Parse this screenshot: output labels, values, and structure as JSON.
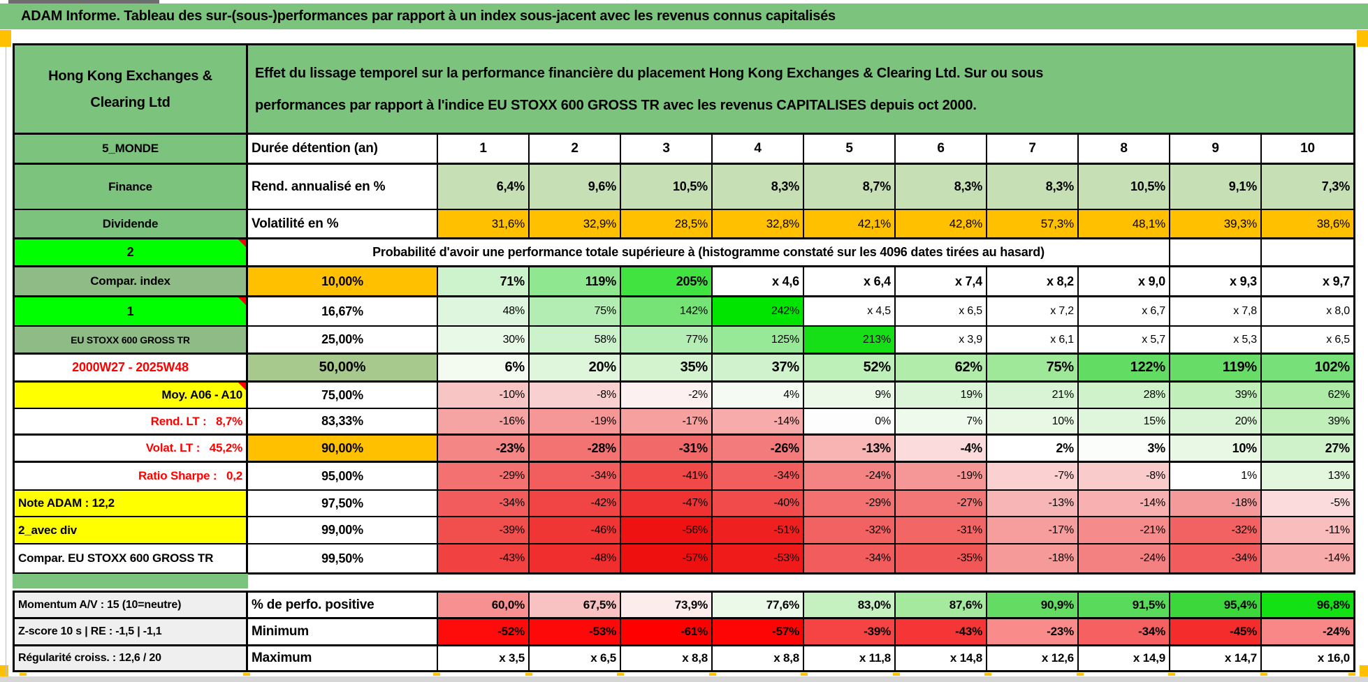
{
  "banner": {
    "title": "ADAM Informe. Tableau des sur-(sous-)performances par rapport à un index sous-jacent avec les revenus connus capitalisés"
  },
  "header": {
    "company": "Hong Kong Exchanges & Clearing Ltd",
    "description": "Effet du lissage temporel sur la performance financière du placement Hong Kong Exchanges & Clearing Ltd. Sur ou sous performances par rapport à l'indice EU STOXX 600 GROSS TR avec les revenus CAPITALISES depuis oct 2000."
  },
  "colors": {
    "banner_green": "#7CC47D",
    "sage_green": "#8FBC86",
    "sage_label": "#A8C98E",
    "lime": "#00FF00",
    "yellow": "#FFFF00",
    "orange": "#FFC000",
    "light_green": "#C6DFB4",
    "gray_label": "#EFEFEF",
    "red_text": "#FF0000",
    "page_break_orange": "#FFC000"
  },
  "main_table": {
    "rows": [
      {
        "id": "duree",
        "a": {
          "text": "5_MONDE",
          "bg": "#7CC47D",
          "align": "center",
          "size": 17
        },
        "b": {
          "text": "Durée détention (an)",
          "align": "left",
          "size": 19
        },
        "values": [
          "1",
          "2",
          "3",
          "4",
          "5",
          "6",
          "7",
          "8",
          "9",
          "10"
        ],
        "value_bg_all": "#FFFFFF",
        "value_bold": true,
        "value_size": 19,
        "value_align": "center",
        "heavy": true
      },
      {
        "id": "rend",
        "a": {
          "text": "Finance",
          "bg": "#7CC47D",
          "align": "center",
          "size": 17
        },
        "b": {
          "text": "Rend. annualisé en %",
          "align": "left",
          "size": 19
        },
        "values": [
          "6,4%",
          "9,6%",
          "10,5%",
          "8,3%",
          "8,7%",
          "8,3%",
          "8,3%",
          "10,5%",
          "9,1%",
          "7,3%"
        ],
        "value_bg_all": "#C6DFB4",
        "value_bold": true,
        "value_size": 18
      },
      {
        "id": "volat",
        "a": {
          "text": "Dividende",
          "bg": "#7CC47D",
          "align": "center",
          "size": 17
        },
        "b": {
          "text": "Volatilité en %",
          "align": "left",
          "size": 19
        },
        "values": [
          "31,6%",
          "32,9%",
          "28,5%",
          "32,8%",
          "42,1%",
          "42,8%",
          "57,3%",
          "48,1%",
          "39,3%",
          "38,6%"
        ],
        "value_bg_all": "#FFC000",
        "value_bold": false,
        "value_size": 17,
        "heavy": true
      },
      {
        "id": "proba",
        "a": {
          "text": "2",
          "bg": "#00FF00",
          "align": "center",
          "size": 18,
          "marker": true
        },
        "b": {
          "text": "Probabilité d'avoir une performance totale supérieure à (histogramme constaté sur les 4096 dates tirées au hasard)",
          "align": "center",
          "size": 18,
          "colspan": 9
        },
        "values": [
          "",
          ""
        ],
        "value_bg_all": "#FFFFFF",
        "value_bold": false,
        "value_size": 16,
        "heavy": true
      },
      {
        "id": "p10",
        "a": {
          "text": "Compar. index",
          "bg": "#8FBC86",
          "align": "center",
          "size": 17
        },
        "b": {
          "text": "10,00%",
          "bg": "#FFC000",
          "align": "center",
          "size": 18
        },
        "values": [
          "71%",
          "119%",
          "205%",
          "x 4,6",
          "x 6,4",
          "x 7,4",
          "x 8,2",
          "x 9,0",
          "x 9,3",
          "x 9,7"
        ],
        "value_bgs": [
          "#CDF3CD",
          "#8FE88F",
          "#41E341",
          "#FFFFFF",
          "#FFFFFF",
          "#FFFFFF",
          "#FFFFFF",
          "#FFFFFF",
          "#FFFFFF",
          "#FFFFFF"
        ],
        "value_bold": true,
        "value_size": 18,
        "heavy": true
      },
      {
        "id": "p16",
        "a": {
          "text": "1",
          "bg": "#00FF00",
          "align": "center",
          "size": 18,
          "marker": true
        },
        "b": {
          "text": "16,67%",
          "align": "center",
          "size": 18
        },
        "values": [
          "48%",
          "75%",
          "142%",
          "242%",
          "x 4,5",
          "x 6,5",
          "x 7,2",
          "x 6,7",
          "x 7,8",
          "x 8,0"
        ],
        "value_bgs": [
          "#DDF6DD",
          "#B3EDB3",
          "#76E376",
          "#00E400",
          "#FFFFFF",
          "#FFFFFF",
          "#FFFFFF",
          "#FFFFFF",
          "#FFFFFF",
          "#FFFFFF"
        ],
        "value_bold": false,
        "value_size": 16
      },
      {
        "id": "p25",
        "a": {
          "text": "EU STOXX 600 GROSS TR",
          "bg": "#8FBC86",
          "align": "center",
          "size": 14
        },
        "b": {
          "text": "25,00%",
          "align": "center",
          "size": 18
        },
        "values": [
          "30%",
          "58%",
          "77%",
          "125%",
          "213%",
          "x 3,9",
          "x 6,1",
          "x 5,7",
          "x 5,3",
          "x 6,5"
        ],
        "value_bgs": [
          "#E8F9E8",
          "#CCF2CC",
          "#B5EEB5",
          "#97E997",
          "#17DF17",
          "#FFFFFF",
          "#FFFFFF",
          "#FFFFFF",
          "#FFFFFF",
          "#FFFFFF"
        ],
        "value_bold": false,
        "value_size": 16,
        "heavy": true
      },
      {
        "id": "p50",
        "a": {
          "text": "2000W27 - 2025W48",
          "bg": "#FFFFFF",
          "fg": "#FF0000",
          "align": "center",
          "size": 18
        },
        "b": {
          "text": "50,00%",
          "bg": "#A8C98E",
          "align": "center",
          "size": 20
        },
        "values": [
          "6%",
          "20%",
          "35%",
          "37%",
          "52%",
          "62%",
          "75%",
          "122%",
          "119%",
          "102%"
        ],
        "value_bgs": [
          "#F3FBF1",
          "#DFF6DC",
          "#D2F3CE",
          "#D0F2CC",
          "#BDEFB8",
          "#B1ECAB",
          "#A0E899",
          "#63DC63",
          "#67DD67",
          "#78E078"
        ],
        "value_bold": true,
        "value_size": 20,
        "heavy": true
      },
      {
        "id": "p75",
        "a": {
          "text": "Moy. A06 - A10",
          "bg": "#FFFF00",
          "align": "right",
          "size": 17,
          "marker": true
        },
        "b": {
          "text": "75,00%",
          "align": "center",
          "size": 18
        },
        "values": [
          "-10%",
          "-8%",
          "-2%",
          "4%",
          "9%",
          "19%",
          "21%",
          "28%",
          "39%",
          "62%"
        ],
        "value_bgs": [
          "#F8C5C5",
          "#F9D0D0",
          "#FDF0F0",
          "#F5FBF3",
          "#ECF9E9",
          "#DCF5D8",
          "#D9F4D5",
          "#CFF2CA",
          "#C0EFB9",
          "#AEEBA6"
        ],
        "value_bold": false,
        "value_size": 16
      },
      {
        "id": "p83",
        "a": {
          "text": "Rend. LT :   8,7%",
          "bg": "#FFFFFF",
          "fg": "#FF0000",
          "align": "right",
          "size": 17
        },
        "b": {
          "text": "83,33%",
          "align": "center",
          "size": 18
        },
        "values": [
          "-16%",
          "-19%",
          "-17%",
          "-14%",
          "0%",
          "7%",
          "10%",
          "15%",
          "20%",
          "39%"
        ],
        "value_bgs": [
          "#F6A3A3",
          "#F59797",
          "#F6A0A0",
          "#F7ABAB",
          "#FDFDFD",
          "#EEFAEB",
          "#E8F8E4",
          "#E0F6DC",
          "#D9F4D4",
          "#C0EFB9"
        ],
        "value_bold": false,
        "value_size": 16,
        "heavy": true
      },
      {
        "id": "p90",
        "a": {
          "text": "Volat. LT :   45,2%",
          "bg": "#FFFFFF",
          "fg": "#FF0000",
          "align": "right",
          "size": 17
        },
        "b": {
          "text": "90,00%",
          "bg": "#FFC000",
          "align": "center",
          "size": 18
        },
        "values": [
          "-23%",
          "-28%",
          "-31%",
          "-26%",
          "-13%",
          "-4%",
          "2%",
          "3%",
          "10%",
          "27%"
        ],
        "value_bgs": [
          "#F48686",
          "#F37373",
          "#F26969",
          "#F37B7B",
          "#F8B3B3",
          "#FBDBDB",
          "#FEFFFE",
          "#FAFDF9",
          "#E8F8E4",
          "#D0F2CB"
        ],
        "value_bold": true,
        "value_size": 18,
        "heavy": true
      },
      {
        "id": "p95",
        "a": {
          "text": "Ratio Sharpe :   0,2",
          "bg": "#FFFFFF",
          "fg": "#FF0000",
          "align": "right",
          "size": 17
        },
        "b": {
          "text": "95,00%",
          "align": "center",
          "size": 18
        },
        "values": [
          "-29%",
          "-34%",
          "-41%",
          "-34%",
          "-24%",
          "-19%",
          "-7%",
          "-8%",
          "1%",
          "13%"
        ],
        "value_bgs": [
          "#F37171",
          "#F25E5E",
          "#F14848",
          "#F25E5E",
          "#F48383",
          "#F59797",
          "#FAD0D0",
          "#FACBCB",
          "#FEFFFE",
          "#E3F7DF"
        ],
        "value_bold": false,
        "value_size": 16
      },
      {
        "id": "p975",
        "a": {
          "text": "Note ADAM : 12,2",
          "bg": "#FFFF00",
          "align": "left",
          "size": 17
        },
        "b": {
          "text": "97,50%",
          "align": "center",
          "size": 18
        },
        "values": [
          "-34%",
          "-42%",
          "-47%",
          "-40%",
          "-29%",
          "-27%",
          "-13%",
          "-14%",
          "-18%",
          "-5%"
        ],
        "value_bgs": [
          "#F25C5C",
          "#F14444",
          "#F03232",
          "#F14B4B",
          "#F37171",
          "#F37777",
          "#F8B5B5",
          "#F8B0B0",
          "#F59A9A",
          "#FBDBDB"
        ],
        "value_bold": false,
        "value_size": 16
      },
      {
        "id": "p99",
        "a": {
          "text": "2_avec div",
          "bg": "#FFFF00",
          "align": "left",
          "size": 17
        },
        "b": {
          "text": "99,00%",
          "align": "center",
          "size": 18
        },
        "values": [
          "-39%",
          "-46%",
          "-56%",
          "-51%",
          "-32%",
          "-31%",
          "-17%",
          "-21%",
          "-32%",
          "-11%"
        ],
        "value_bgs": [
          "#F14E4E",
          "#F03535",
          "#EE1212",
          "#EF2020",
          "#F26262",
          "#F26666",
          "#F69D9D",
          "#F58B8B",
          "#F26262",
          "#F9BDBD"
        ],
        "value_bold": false,
        "value_size": 16
      },
      {
        "id": "p995",
        "a": {
          "text": "Compar. EU STOXX 600 GROSS TR",
          "bg": "#FFFFFF",
          "align": "left",
          "size": 17
        },
        "b": {
          "text": "99,50%",
          "align": "center",
          "size": 18
        },
        "values": [
          "-43%",
          "-48%",
          "-57%",
          "-53%",
          "-34%",
          "-35%",
          "-18%",
          "-24%",
          "-34%",
          "-14%"
        ],
        "value_bgs": [
          "#F14141",
          "#F02E2E",
          "#EE0F0F",
          "#EF1B1B",
          "#F25C5C",
          "#F15757",
          "#F69999",
          "#F48181",
          "#F25C5C",
          "#F8ABAB"
        ],
        "value_bold": false,
        "value_size": 16
      }
    ]
  },
  "bottom_table": {
    "rows": [
      {
        "id": "mom",
        "a": {
          "text": "Momentum A/V : 15 (10=neutre)",
          "bg": "#EFEFEF",
          "align": "left",
          "size": 16
        },
        "b": {
          "text": "% de perfo. positive",
          "align": "left",
          "size": 19
        },
        "values": [
          "60,0%",
          "67,5%",
          "73,9%",
          "77,6%",
          "83,0%",
          "87,6%",
          "90,9%",
          "91,5%",
          "95,4%",
          "96,8%"
        ],
        "value_bgs": [
          "#F79090",
          "#F9C2C2",
          "#FDECEC",
          "#EBF9E8",
          "#C5F0C0",
          "#A5E99F",
          "#64DC64",
          "#5ADA5A",
          "#3BD73B",
          "#13E113"
        ],
        "value_bold": true,
        "value_size": 17,
        "heavy": true
      },
      {
        "id": "z",
        "a": {
          "text": "Z-score 10 s | RE : -1,5 | -1,1",
          "bg": "#EFEFEF",
          "align": "left",
          "size": 16
        },
        "b": {
          "text": "Minimum",
          "align": "left",
          "size": 19
        },
        "values": [
          "-52%",
          "-53%",
          "-61%",
          "-57%",
          "-39%",
          "-43%",
          "-23%",
          "-34%",
          "-45%",
          "-24%"
        ],
        "value_bgs": [
          "#FE0C0C",
          "#FE0909",
          "#FF0000",
          "#FE0505",
          "#F64444",
          "#F63636",
          "#F98B8B",
          "#F66060",
          "#F52C2C",
          "#F98787"
        ],
        "value_bold": true,
        "value_size": 17,
        "heavy": true
      },
      {
        "id": "reg",
        "a": {
          "text": "Régularité croiss. : 12,6 / 20",
          "bg": "#EFEFEF",
          "align": "left",
          "size": 16
        },
        "b": {
          "text": "Maximum",
          "align": "left",
          "size": 19
        },
        "values": [
          "x 3,5",
          "x 6,5",
          "x 8,8",
          "x 8,8",
          "x 11,8",
          "x 14,8",
          "x 12,6",
          "x 14,9",
          "x 14,7",
          "x 16,0"
        ],
        "value_bg_all": "#FFFFFF",
        "value_bold": true,
        "value_size": 17
      }
    ]
  }
}
